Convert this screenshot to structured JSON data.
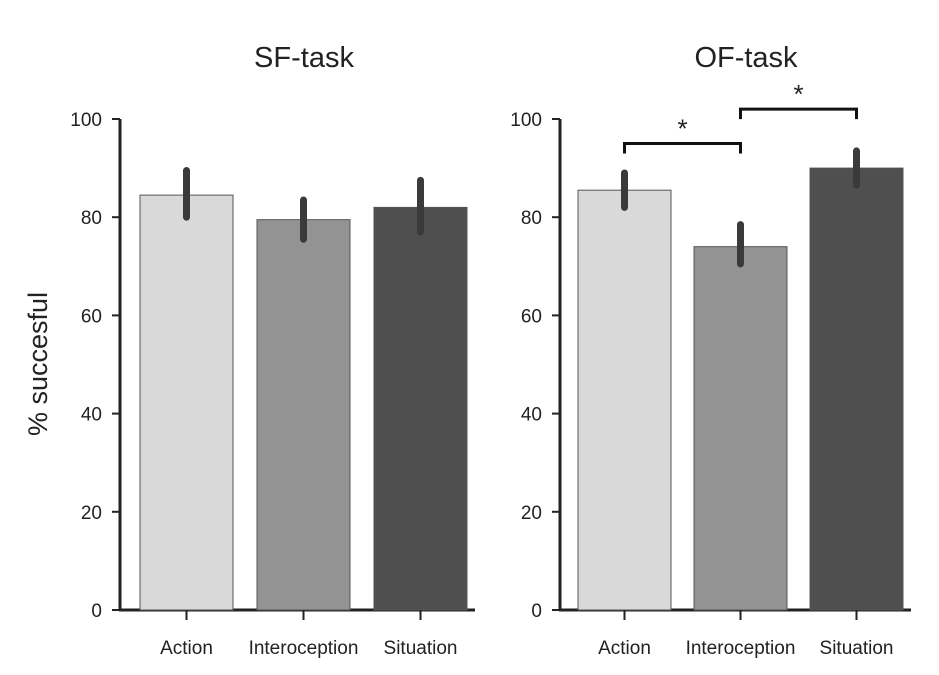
{
  "chart_data": [
    {
      "type": "bar",
      "title": "SF-task",
      "ylabel": "% succesful",
      "xlabel": "",
      "ylim": [
        0,
        100
      ],
      "yticks": [
        0,
        20,
        40,
        60,
        80,
        100
      ],
      "categories": [
        "Action",
        "Interoception",
        "Situation"
      ],
      "values": [
        84.5,
        79.5,
        82
      ],
      "error_low": [
        80,
        75.5,
        77
      ],
      "error_high": [
        89.5,
        83.5,
        87.5
      ],
      "colors": [
        "#d9d9d9",
        "#939393",
        "#4f4f4f"
      ],
      "significance": []
    },
    {
      "type": "bar",
      "title": "OF-task",
      "ylabel": "",
      "xlabel": "",
      "ylim": [
        0,
        100
      ],
      "yticks": [
        0,
        20,
        40,
        60,
        80,
        100
      ],
      "categories": [
        "Action",
        "Interoception",
        "Situation"
      ],
      "values": [
        85.5,
        74,
        90
      ],
      "error_low": [
        82,
        70.5,
        86.5
      ],
      "error_high": [
        89,
        78.5,
        93.5
      ],
      "colors": [
        "#d9d9d9",
        "#939393",
        "#4f4f4f"
      ],
      "significance": [
        {
          "from": 0,
          "to": 1,
          "label": "*",
          "level": 95
        },
        {
          "from": 1,
          "to": 2,
          "label": "*",
          "level": 102
        }
      ]
    }
  ]
}
